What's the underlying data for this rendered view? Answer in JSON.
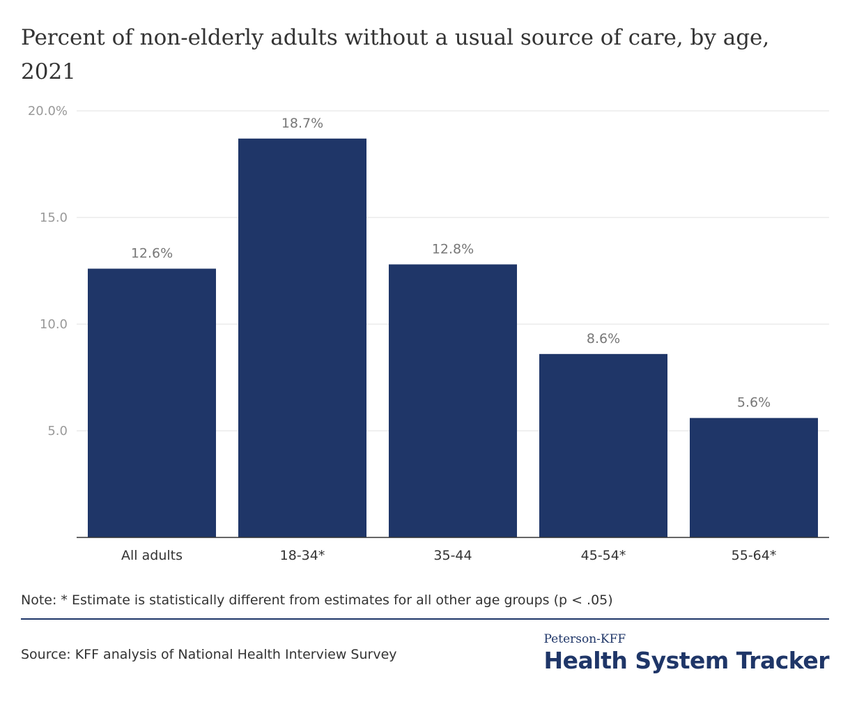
{
  "chart_data": {
    "type": "bar",
    "title": "Percent of non-elderly adults without a usual source of care, by age, 2021",
    "categories": [
      "All adults",
      "18-34*",
      "35-44",
      "45-54*",
      "55-64*"
    ],
    "values": [
      12.6,
      18.7,
      12.8,
      8.6,
      5.6
    ],
    "data_labels": [
      "12.6%",
      "18.7%",
      "12.8%",
      "8.6%",
      "5.6%"
    ],
    "y_ticks": [
      {
        "value": 5,
        "label": "5.0"
      },
      {
        "value": 10,
        "label": "10.0"
      },
      {
        "value": 15,
        "label": "15.0"
      },
      {
        "value": 20,
        "label": "20.0%"
      }
    ],
    "ylim": [
      0,
      20
    ],
    "xlabel": "",
    "ylabel": "",
    "grid": true,
    "bar_color": "#1f3668",
    "grid_color": "#e0e0e0",
    "tick_label_color": "#999999",
    "data_label_color": "#777777"
  },
  "note": "Note: * Estimate is statistically different from estimates for all other age groups (p < .05)",
  "source": "Source: KFF analysis of National Health Interview Survey",
  "logo": {
    "top": "Peterson-KFF",
    "main": "Health System Tracker"
  }
}
